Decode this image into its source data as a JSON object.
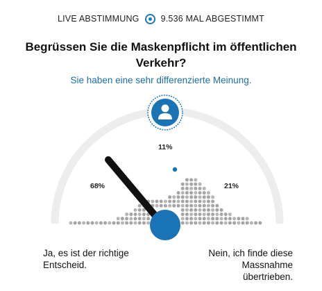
{
  "header": {
    "live_label": "LIVE ABSTIMMUNG",
    "live_icon": "radio-dot-icon",
    "vote_count": "9.536 MAL ABGESTIMMT",
    "accent_color": "#1a7ab8"
  },
  "poll": {
    "question": "Begrüssen Sie die Maskenpflicht im öffentlichen Verkehr?",
    "feedback": "Sie haben eine sehr differenzierte Meinung.",
    "avatar_icon": "user-icon",
    "results": {
      "left_percent": "68%",
      "middle_percent": "11%",
      "right_percent": "21%"
    },
    "answers": {
      "left_line1": "Ja, es ist der richtige",
      "left_line2": "Entscheid.",
      "right_line1": "Nein, ich finde diese",
      "right_line2": "Massnahme",
      "right_line3": "übertrieben."
    }
  }
}
